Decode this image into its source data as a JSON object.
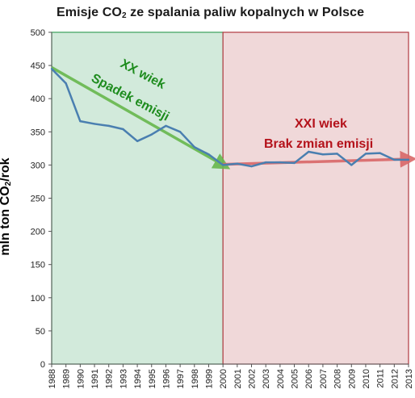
{
  "chart_data": {
    "type": "line",
    "title_parts": [
      "Emisje CO",
      "2",
      " ze spalania  paliw kopalnych  w Polsce"
    ],
    "ylabel_parts": [
      "mln ton CO",
      "2",
      "/rok"
    ],
    "xlabel": "",
    "ylim": [
      0,
      500
    ],
    "yticks": [
      "0",
      "50",
      "100",
      "150",
      "200",
      "250",
      "300",
      "350",
      "400",
      "450",
      "500"
    ],
    "x": [
      "1988",
      "1989",
      "1990",
      "1991",
      "1992",
      "1993",
      "1994",
      "1995",
      "1996",
      "1997",
      "1998",
      "1999",
      "2000",
      "2001",
      "2002",
      "2003",
      "2004",
      "2005",
      "2006",
      "2007",
      "2008",
      "2009",
      "2010",
      "2011",
      "2012",
      "2013"
    ],
    "series": [
      {
        "values": [
          445,
          423,
          366,
          362,
          359,
          354,
          336,
          346,
          359,
          350,
          327,
          316,
          300,
          302,
          298,
          304,
          304,
          303,
          320,
          316,
          317,
          300,
          317,
          318,
          308,
          308
        ]
      }
    ],
    "regions": [
      {
        "from": "1988",
        "to": "2000",
        "fill": "#d2eadb",
        "border": "#3aa05a"
      },
      {
        "from": "2000",
        "to": "2013",
        "fill": "#f0d8d9",
        "border": "#b03a40"
      }
    ],
    "trends": [
      {
        "from": "1988",
        "to": "2000",
        "y0": 447,
        "y1": 300,
        "color": "#67b84d"
      },
      {
        "from": "2000",
        "to": "2013",
        "y0": 301,
        "y1": 309,
        "color": "#d96868"
      }
    ],
    "annotations": [
      {
        "text": "XX wiek",
        "style": "green"
      },
      {
        "text": "Spadek emisji",
        "style": "green"
      },
      {
        "text": "XXI wiek",
        "style": "red"
      },
      {
        "text": "Brak zmian  emisji",
        "style": "red"
      }
    ],
    "line_color": "#4a7fb0",
    "grid": false
  }
}
